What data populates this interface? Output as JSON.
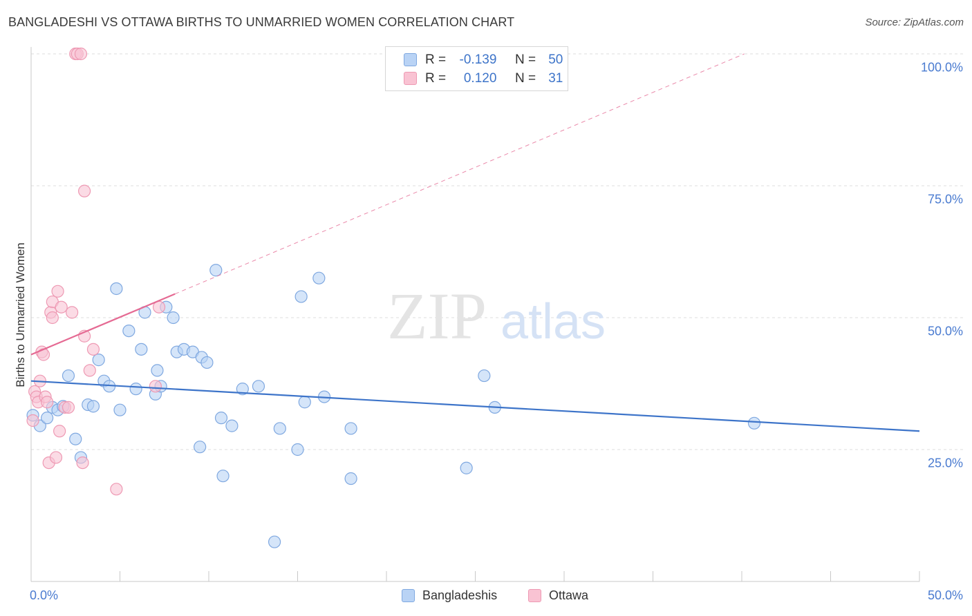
{
  "header": {
    "title": "BANGLADESHI VS OTTAWA BIRTHS TO UNMARRIED WOMEN CORRELATION CHART",
    "source": "Source: ZipAtlas.com"
  },
  "watermark": {
    "zip": "ZIP",
    "atlas": "atlas"
  },
  "legend": {
    "r_label": "R =",
    "n_label": "N =",
    "entries": [
      {
        "name": "Bangladeshis",
        "r": "-0.139",
        "n": "50",
        "fill": "#b9d3f5",
        "stroke": "#7fa8e0"
      },
      {
        "name": "Ottawa",
        "r": "0.120",
        "n": "31",
        "fill": "#f9c3d3",
        "stroke": "#ee99b3"
      }
    ]
  },
  "chart_data": {
    "type": "scatter",
    "title": "BANGLADESHI VS OTTAWA BIRTHS TO UNMARRIED WOMEN CORRELATION CHART",
    "xlabel": "",
    "ylabel": "Births to Unmarried Women",
    "xlim": [
      0,
      50
    ],
    "ylim": [
      0,
      100
    ],
    "x_tick_labels": [
      "0.0%",
      "50.0%"
    ],
    "y_ticks": [
      25,
      50,
      75,
      100
    ],
    "y_tick_labels": [
      "25.0%",
      "50.0%",
      "75.0%",
      "100.0%"
    ],
    "grid": true,
    "series": [
      {
        "name": "Bangladeshis",
        "color": "#3d74c9",
        "marker_fill": "#b9d3f5",
        "marker_stroke": "#7fa8e0",
        "points": [
          [
            0.1,
            31.5
          ],
          [
            0.5,
            29.5
          ],
          [
            0.9,
            31.0
          ],
          [
            1.2,
            33.0
          ],
          [
            1.5,
            32.5
          ],
          [
            1.8,
            33.2
          ],
          [
            2.1,
            39.0
          ],
          [
            2.5,
            27.0
          ],
          [
            2.8,
            23.5
          ],
          [
            3.2,
            33.5
          ],
          [
            3.5,
            33.2
          ],
          [
            3.8,
            42.0
          ],
          [
            4.1,
            38.0
          ],
          [
            4.4,
            37.0
          ],
          [
            4.8,
            55.5
          ],
          [
            5.0,
            32.5
          ],
          [
            5.5,
            47.5
          ],
          [
            5.9,
            36.5
          ],
          [
            6.2,
            44.0
          ],
          [
            6.4,
            51.0
          ],
          [
            7.0,
            35.5
          ],
          [
            7.1,
            40.0
          ],
          [
            7.3,
            37.0
          ],
          [
            7.6,
            52.0
          ],
          [
            8.0,
            50.0
          ],
          [
            8.2,
            43.5
          ],
          [
            8.6,
            44.0
          ],
          [
            9.1,
            43.5
          ],
          [
            9.5,
            25.5
          ],
          [
            9.6,
            42.5
          ],
          [
            9.9,
            41.5
          ],
          [
            10.4,
            59.0
          ],
          [
            10.7,
            31.0
          ],
          [
            10.8,
            20.0
          ],
          [
            11.3,
            29.5
          ],
          [
            11.9,
            36.5
          ],
          [
            12.8,
            37.0
          ],
          [
            13.7,
            7.5
          ],
          [
            14.0,
            29.0
          ],
          [
            15.0,
            25.0
          ],
          [
            15.2,
            54.0
          ],
          [
            15.4,
            34.0
          ],
          [
            16.2,
            57.5
          ],
          [
            16.5,
            35.0
          ],
          [
            18.0,
            29.0
          ],
          [
            18.0,
            19.5
          ],
          [
            24.5,
            21.5
          ],
          [
            25.5,
            39.0
          ],
          [
            26.1,
            33.0
          ],
          [
            40.7,
            30.0
          ]
        ],
        "trend": {
          "x": [
            0,
            50
          ],
          "y": [
            38.0,
            28.5
          ],
          "style": "solid"
        }
      },
      {
        "name": "Ottawa",
        "color": "#e56a93",
        "marker_fill": "#f9c3d3",
        "marker_stroke": "#ee99b3",
        "points": [
          [
            0.1,
            30.5
          ],
          [
            0.2,
            36.0
          ],
          [
            0.3,
            35.0
          ],
          [
            0.4,
            34.0
          ],
          [
            0.5,
            38.0
          ],
          [
            0.6,
            43.5
          ],
          [
            0.7,
            43.0
          ],
          [
            0.8,
            35.0
          ],
          [
            0.9,
            34.0
          ],
          [
            1.0,
            22.5
          ],
          [
            1.1,
            51.0
          ],
          [
            1.2,
            53.0
          ],
          [
            1.2,
            50.0
          ],
          [
            1.4,
            23.5
          ],
          [
            1.5,
            55.0
          ],
          [
            1.6,
            28.5
          ],
          [
            1.7,
            52.0
          ],
          [
            1.9,
            33.0
          ],
          [
            2.1,
            33.0
          ],
          [
            2.3,
            51.0
          ],
          [
            2.5,
            100.0
          ],
          [
            2.6,
            100.0
          ],
          [
            2.8,
            100.0
          ],
          [
            2.9,
            22.5
          ],
          [
            3.0,
            74.0
          ],
          [
            3.0,
            46.5
          ],
          [
            3.3,
            40.0
          ],
          [
            3.5,
            44.0
          ],
          [
            4.8,
            17.5
          ],
          [
            7.0,
            37.0
          ],
          [
            7.2,
            52.0
          ]
        ],
        "trend_solid": {
          "x": [
            0,
            8.1
          ],
          "y": [
            43.0,
            54.5
          ]
        },
        "trend_dashed": {
          "x": [
            8.1,
            50
          ],
          "y": [
            54.5,
            114.0
          ]
        }
      }
    ]
  }
}
